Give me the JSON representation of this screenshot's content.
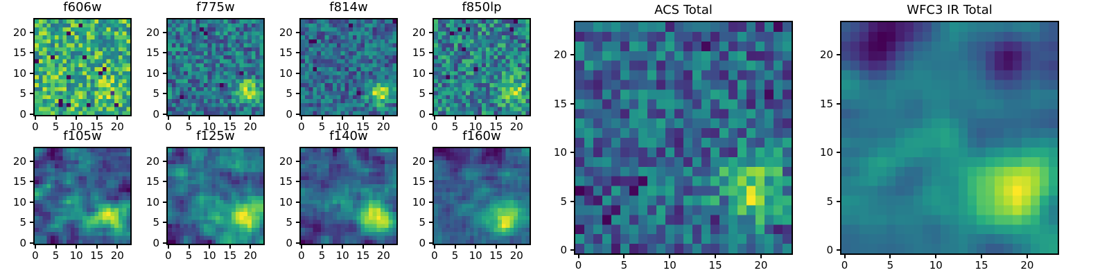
{
  "figure": {
    "background": "#ffffff",
    "frame_color": "#000000",
    "text_color": "#000000"
  },
  "chart_data": {
    "type": "heatmap",
    "colormap": "viridis",
    "colormap_stops": [
      "#440154",
      "#472c7b",
      "#3b518b",
      "#2c718e",
      "#21908c",
      "#27ad81",
      "#5cc863",
      "#aadc32",
      "#fde725"
    ],
    "grid_size": [
      24,
      24
    ],
    "x_ticks": [
      0,
      5,
      10,
      15,
      20
    ],
    "y_ticks": [
      0,
      5,
      10,
      15,
      20
    ],
    "x_range": [
      -0.5,
      23.5
    ],
    "y_range": [
      -0.5,
      23.5
    ],
    "legend": "none",
    "grid_lines": false,
    "panels": [
      {
        "title": "f606w",
        "size": "small",
        "field": {
          "seed": 11,
          "base": 0.74,
          "noise": 0.3,
          "smooth": 0,
          "spots": 14,
          "spot_value": 0.06,
          "blobs": [
            {
              "x": 19,
              "y": 6,
              "r": 2.4,
              "a": 0.18
            }
          ]
        }
      },
      {
        "title": "f775w",
        "size": "small",
        "field": {
          "seed": 22,
          "base": 0.47,
          "noise": 0.24,
          "smooth": 0,
          "spots": 5,
          "spot_value": 0.08,
          "blobs": [
            {
              "x": 19.5,
              "y": 5.5,
              "r": 2.1,
              "a": 0.5
            }
          ]
        }
      },
      {
        "title": "f814w",
        "size": "small",
        "field": {
          "seed": 33,
          "base": 0.4,
          "noise": 0.21,
          "smooth": 0,
          "spots": 6,
          "spot_value": 0.06,
          "blobs": [
            {
              "x": 19.5,
              "y": 5,
              "r": 2.0,
              "a": 0.6
            }
          ]
        }
      },
      {
        "title": "f850lp",
        "size": "small",
        "field": {
          "seed": 44,
          "base": 0.55,
          "noise": 0.3,
          "smooth": 0,
          "spots": 8,
          "spot_value": 0.06,
          "blobs": [
            {
              "x": 19.5,
              "y": 5.5,
              "r": 2.1,
              "a": 0.45
            }
          ]
        }
      },
      {
        "title": "f105w",
        "size": "small",
        "field": {
          "seed": 55,
          "base": 0.45,
          "noise": 0.38,
          "smooth": 1,
          "spots": 0,
          "spot_value": 0,
          "blobs": [
            {
              "x": 18.5,
              "y": 6,
              "r": 2.6,
              "a": 0.5
            },
            {
              "x": 9,
              "y": 8,
              "r": 3.0,
              "a": 0.15
            },
            {
              "x": 3,
              "y": 22,
              "r": 1.8,
              "a": -0.22
            }
          ]
        }
      },
      {
        "title": "f125w",
        "size": "small",
        "field": {
          "seed": 66,
          "base": 0.45,
          "noise": 0.38,
          "smooth": 1,
          "spots": 0,
          "spot_value": 0,
          "blobs": [
            {
              "x": 19,
              "y": 6,
              "r": 2.8,
              "a": 0.55
            },
            {
              "x": 9,
              "y": 8,
              "r": 3.0,
              "a": 0.15
            },
            {
              "x": 3,
              "y": 22,
              "r": 1.6,
              "a": -0.25
            }
          ]
        }
      },
      {
        "title": "f140w",
        "size": "small",
        "field": {
          "seed": 77,
          "base": 0.47,
          "noise": 0.38,
          "smooth": 1,
          "spots": 0,
          "spot_value": 0,
          "blobs": [
            {
              "x": 18.5,
              "y": 6.5,
              "r": 3.0,
              "a": 0.55
            },
            {
              "x": 10,
              "y": 10,
              "r": 3.0,
              "a": 0.15
            }
          ]
        }
      },
      {
        "title": "f160w",
        "size": "small",
        "field": {
          "seed": 88,
          "base": 0.44,
          "noise": 0.4,
          "smooth": 1,
          "spots": 0,
          "spot_value": 0,
          "blobs": [
            {
              "x": 18,
              "y": 6,
              "r": 3.0,
              "a": 0.6
            },
            {
              "x": 5,
              "y": 21,
              "r": 2.4,
              "a": -0.3
            },
            {
              "x": 16,
              "y": 22,
              "r": 1.8,
              "a": -0.25
            },
            {
              "x": 10,
              "y": 9,
              "r": 3.0,
              "a": 0.12
            }
          ]
        }
      },
      {
        "title": "ACS Total",
        "size": "large",
        "field": {
          "seed": 99,
          "base": 0.42,
          "noise": 0.26,
          "smooth": 0,
          "spots": 10,
          "spot_value": 0.08,
          "blobs": [
            {
              "x": 19,
              "y": 6,
              "r": 2.5,
              "a": 0.55
            },
            {
              "x": 2,
              "y": 3,
              "r": 2.0,
              "a": -0.12
            }
          ]
        }
      },
      {
        "title": "WFC3 IR Total",
        "size": "large",
        "field": {
          "seed": 110,
          "base": 0.45,
          "noise": 0.5,
          "smooth": 2,
          "spots": 0,
          "spot_value": 0,
          "blobs": [
            {
              "x": 19,
              "y": 6,
              "r": 3.2,
              "a": 0.6
            },
            {
              "x": 4,
              "y": 21.5,
              "r": 2.2,
              "a": -0.38
            },
            {
              "x": 17.5,
              "y": 20.5,
              "r": 1.8,
              "a": -0.32
            },
            {
              "x": 10,
              "y": 12,
              "r": 3.5,
              "a": 0.12
            },
            {
              "x": 23,
              "y": 23,
              "r": 1.8,
              "a": -0.2
            }
          ]
        }
      }
    ]
  }
}
